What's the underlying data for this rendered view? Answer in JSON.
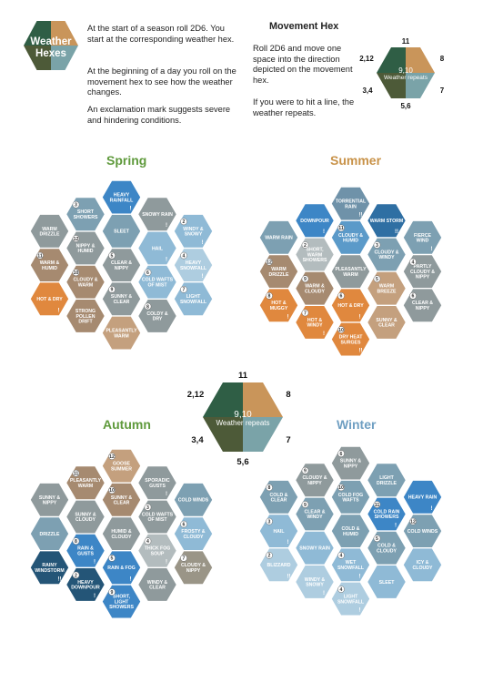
{
  "logo": {
    "line1": "Weather",
    "line2": "Hexes",
    "colors": [
      "#2f5e45",
      "#c9955a",
      "#4d5a38",
      "#7aa3a8"
    ]
  },
  "intro": {
    "p1": "At the start of a season roll 2D6. You start at the corresponding weather hex.",
    "p2": "At the beginning of a day you roll on the movement hex to see how the weather changes.",
    "p3": "An exclamation mark suggests severe and hindering conditions."
  },
  "movement": {
    "title": "Movement Hex",
    "p1": "Roll 2D6 and move one space into the direction depicted on the movement hex.",
    "p2": "If you were to hit a line, the weather repeats.",
    "labels": {
      "top": "11",
      "upper_right": "8",
      "lower_right": "7",
      "bottom": "5,6",
      "lower_left": "3,4",
      "upper_left": "2,12",
      "center_num": "9,10",
      "center_text": "Weather repeats"
    },
    "colors": {
      "top_left": "#2f5e45",
      "top_right": "#c9955a",
      "bottom_left": "#4d5a38",
      "bottom_right": "#7aa3a8"
    }
  },
  "colors": {
    "blue": "#3d86c6",
    "blue2": "#5b9ac9",
    "lightblue": "#8fbad6",
    "paleblue": "#aecde0",
    "darkblue": "#2f6fa3",
    "navy": "#245577",
    "gray": "#8f9a9c",
    "grayblue": "#7da0b2",
    "brown": "#a68a70",
    "orange": "#e0883e",
    "tan": "#c4a07e",
    "beige": "#b89a7e",
    "sand": "#a79683",
    "lightgray": "#b3bcbe",
    "steel": "#6f92a9",
    "graytan": "#9a9587"
  },
  "seasons": [
    {
      "name": "Spring",
      "title_color": "#5f9a3c",
      "hexes": [
        {
          "label": "HEAVY RAINFALL",
          "color": "blue",
          "bang": "!",
          "num": ""
        },
        {
          "label": "SHORT SHOWERS",
          "color": "grayblue",
          "bang": "",
          "num": "3"
        },
        {
          "label": "SNOWY RAIN",
          "color": "gray",
          "bang": "!",
          "num": ""
        },
        {
          "label": "WARM DRIZZLE",
          "color": "gray",
          "bang": "",
          "num": ""
        },
        {
          "label": "SLEET",
          "color": "grayblue",
          "bang": "",
          "num": ""
        },
        {
          "label": "WINDY & SNOWY",
          "color": "lightblue",
          "bang": "!",
          "num": "2"
        },
        {
          "label": "NIPPY & HUMID",
          "color": "gray",
          "bang": "",
          "num": "12"
        },
        {
          "label": "HAIL",
          "color": "lightblue",
          "bang": "!",
          "num": ""
        },
        {
          "label": "WARM & HUMID",
          "color": "brown",
          "bang": "",
          "num": "11"
        },
        {
          "label": "CLEAR & NIPPY",
          "color": "gray",
          "bang": "",
          "num": "5"
        },
        {
          "label": "HEAVY SNOWFALL",
          "color": "paleblue",
          "bang": "!",
          "num": "4"
        },
        {
          "label": "CLOUDY & WARM",
          "color": "brown",
          "bang": "",
          "num": "10"
        },
        {
          "label": "COLD WAFTS OF MIST",
          "color": "lightblue",
          "bang": "",
          "num": "6"
        },
        {
          "label": "HOT & DRY",
          "color": "orange",
          "bang": "!",
          "num": ""
        },
        {
          "label": "SUNNY & CLEAR",
          "color": "gray",
          "bang": "",
          "num": "9"
        },
        {
          "label": "LIGHT SNOWFALL",
          "color": "lightblue",
          "bang": "",
          "num": "7"
        },
        {
          "label": "STRONG POLLEN DRIFT",
          "color": "brown",
          "bang": "",
          "num": ""
        },
        {
          "label": "COLDY & DRY",
          "color": "gray",
          "bang": "",
          "num": "8"
        },
        {
          "label": "PLEASANTLY WARM",
          "color": "tan",
          "bang": "",
          "num": ""
        }
      ]
    },
    {
      "name": "Summer",
      "title_color": "#c89248",
      "hexes": [
        {
          "label": "TORRENTIAL RAIN",
          "color": "steel",
          "bang": "!!",
          "num": ""
        },
        {
          "label": "DOWNPOUR",
          "color": "blue",
          "bang": "!",
          "num": ""
        },
        {
          "label": "WARM STORM",
          "color": "darkblue",
          "bang": "!!",
          "num": ""
        },
        {
          "label": "WARM RAIN",
          "color": "grayblue",
          "bang": "",
          "num": ""
        },
        {
          "label": "CLOUDY & HUMID",
          "color": "blue2",
          "bang": "",
          "num": "11"
        },
        {
          "label": "FIERCE WIND",
          "color": "grayblue",
          "bang": "!",
          "num": ""
        },
        {
          "label": "SHORT, WARM SHOWERS",
          "color": "lightgray",
          "bang": "",
          "num": "2"
        },
        {
          "label": "CLOUDY & WINDY",
          "color": "grayblue",
          "bang": "",
          "num": "3"
        },
        {
          "label": "WARM DRIZZLE",
          "color": "brown",
          "bang": "",
          "num": "12"
        },
        {
          "label": "PLEASANTLY WARM",
          "color": "gray",
          "bang": "",
          "num": ""
        },
        {
          "label": "PARTLY CLOUDY & NIPPY",
          "color": "gray",
          "bang": "",
          "num": "4"
        },
        {
          "label": "WARM & CLOUDY",
          "color": "brown",
          "bang": "",
          "num": "9"
        },
        {
          "label": "WARM BREEZE",
          "color": "tan",
          "bang": "",
          "num": "5"
        },
        {
          "label": "HOT & MUGGY",
          "color": "orange",
          "bang": "!",
          "num": "8"
        },
        {
          "label": "HOT & DRY",
          "color": "orange",
          "bang": "!",
          "num": "6"
        },
        {
          "label": "CLEAR & NIPPY",
          "color": "gray",
          "bang": "",
          "num": "6"
        },
        {
          "label": "HOT & WINDY",
          "color": "orange",
          "bang": "!",
          "num": "7"
        },
        {
          "label": "SUNNY & CLEAR",
          "color": "tan",
          "bang": "",
          "num": ""
        },
        {
          "label": "DRY HEAT SURGES",
          "color": "orange",
          "bang": "!!",
          "num": "10"
        }
      ]
    },
    {
      "name": "Autumn",
      "title_color": "#5f9a3c",
      "hexes": [
        {
          "label": "GOOSE SUMMER",
          "color": "tan",
          "bang": "",
          "num": "12"
        },
        {
          "label": "PLEASANTLY WARM",
          "color": "brown",
          "bang": "",
          "num": "11"
        },
        {
          "label": "SPORADIC GUSTS",
          "color": "gray",
          "bang": "!",
          "num": ""
        },
        {
          "label": "SUNNY & NIPPY",
          "color": "gray",
          "bang": "",
          "num": ""
        },
        {
          "label": "SUNNY & CLEAR",
          "color": "brown",
          "bang": "",
          "num": "10"
        },
        {
          "label": "COLD WINDS",
          "color": "grayblue",
          "bang": "",
          "num": ""
        },
        {
          "label": "SUNNY & CLOUDY",
          "color": "gray",
          "bang": "",
          "num": ""
        },
        {
          "label": "COLD WAFTS OF MIST",
          "color": "gray",
          "bang": "",
          "num": "3"
        },
        {
          "label": "DRIZZLE",
          "color": "grayblue",
          "bang": "",
          "num": ""
        },
        {
          "label": "HUMID & CLOUDY",
          "color": "gray",
          "bang": "",
          "num": ""
        },
        {
          "label": "FROSTY & CLOUDY",
          "color": "lightblue",
          "bang": "",
          "num": "6"
        },
        {
          "label": "RAIN & GUSTS",
          "color": "blue",
          "bang": "!",
          "num": "8"
        },
        {
          "label": "THICK FOG SOUP",
          "color": "lightgray",
          "bang": "!",
          "num": "4"
        },
        {
          "label": "RAINY WINDSTORM",
          "color": "navy",
          "bang": "!!",
          "num": ""
        },
        {
          "label": "RAIN & FOG",
          "color": "blue",
          "bang": "!",
          "num": "5"
        },
        {
          "label": "CLOUDY & NIPPY",
          "color": "graytan",
          "bang": "",
          "num": "7"
        },
        {
          "label": "HEAVY DOWNPOUR",
          "color": "navy",
          "bang": "!",
          "num": "2"
        },
        {
          "label": "WINDY & CLEAR",
          "color": "gray",
          "bang": "",
          "num": ""
        },
        {
          "label": "SHORT, LIGHT SHOWERS",
          "color": "blue",
          "bang": "",
          "num": "9"
        }
      ]
    },
    {
      "name": "Winter",
      "title_color": "#6f9fc2",
      "hexes": [
        {
          "label": "SUNNY & NIPPY",
          "color": "gray",
          "bang": "",
          "num": "6"
        },
        {
          "label": "CLOUDY & NIPPY",
          "color": "gray",
          "bang": "",
          "num": "9"
        },
        {
          "label": "LIGHT DRIZZLE",
          "color": "grayblue",
          "bang": "",
          "num": ""
        },
        {
          "label": "COLD & CLEAR",
          "color": "grayblue",
          "bang": "",
          "num": "8"
        },
        {
          "label": "COLD FOG WAFTS",
          "color": "grayblue",
          "bang": "",
          "num": "10"
        },
        {
          "label": "HEAVY RAIN",
          "color": "blue",
          "bang": "!",
          "num": ""
        },
        {
          "label": "CLEAR & WINDY",
          "color": "grayblue",
          "bang": "",
          "num": "9"
        },
        {
          "label": "COLD RAIN SHOWERS",
          "color": "blue",
          "bang": "!",
          "num": "11"
        },
        {
          "label": "HAIL",
          "color": "lightblue",
          "bang": "!",
          "num": "3"
        },
        {
          "label": "COLD & HUMID",
          "color": "grayblue",
          "bang": "",
          "num": ""
        },
        {
          "label": "COLD WINDS",
          "color": "grayblue",
          "bang": "",
          "num": "12"
        },
        {
          "label": "SNOWY RAIN",
          "color": "lightblue",
          "bang": "",
          "num": ""
        },
        {
          "label": "COLD & CLOUDY",
          "color": "grayblue",
          "bang": "",
          "num": "5"
        },
        {
          "label": "BLIZZARD",
          "color": "paleblue",
          "bang": "!!",
          "num": "2"
        },
        {
          "label": "WET SNOWFALL",
          "color": "lightblue",
          "bang": "!",
          "num": "4"
        },
        {
          "label": "ICY & CLOUDY",
          "color": "lightblue",
          "bang": "",
          "num": ""
        },
        {
          "label": "WINDY & SNOWY",
          "color": "paleblue",
          "bang": "!",
          "num": ""
        },
        {
          "label": "SLEET",
          "color": "lightblue",
          "bang": "",
          "num": ""
        },
        {
          "label": "LIGHT SNOWFALL",
          "color": "paleblue",
          "bang": "!",
          "num": "4"
        }
      ]
    }
  ]
}
